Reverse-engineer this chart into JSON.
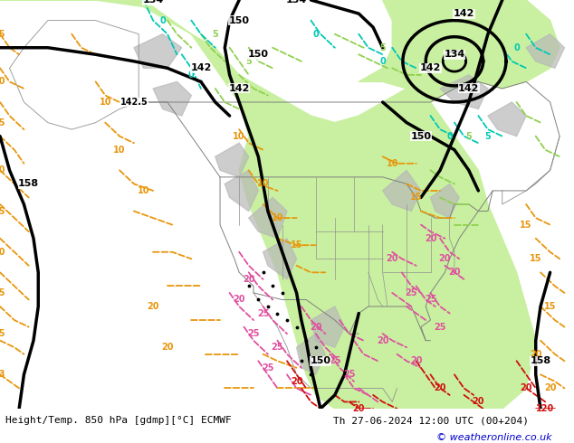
{
  "title_left": "Height/Temp. 850 hPa [gdmp][°C] ECMWF",
  "title_right": "Th 27-06-2024 12:00 UTC (00+204)",
  "copyright": "© weatheronline.co.uk",
  "bg_color": "#e8e8e8",
  "map_bg_color": "#e8e8e8",
  "green_fill_color": "#c8f0a0",
  "footer_bg": "#ffffff",
  "footer_text_color": "#000000",
  "copyright_color": "#0000cc",
  "bottom_bar_height": 38,
  "figsize": [
    6.34,
    4.9
  ],
  "dpi": 100
}
